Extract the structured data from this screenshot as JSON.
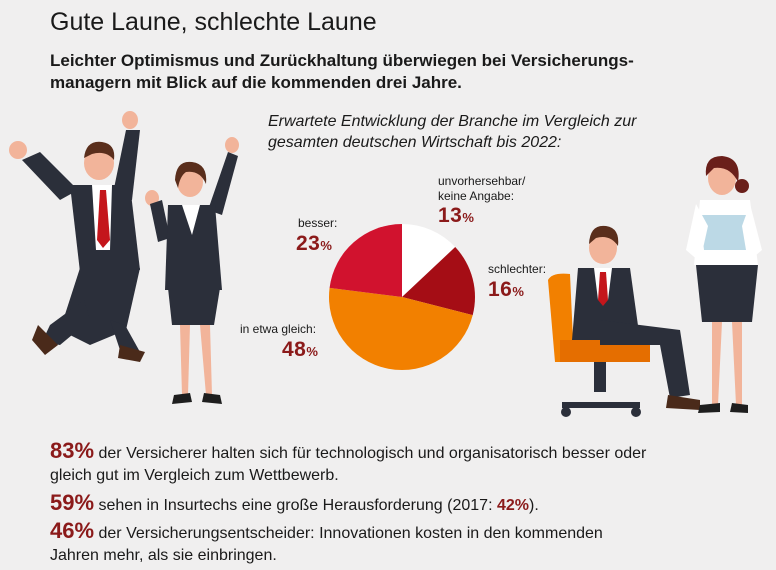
{
  "title": "Gute Laune, schlechte Laune",
  "subtitle": "Leichter Optimismus und Zurückhaltung überwiegen bei Versicherungs-managern mit Blick auf die kommenden drei Jahre.",
  "chart_data": {
    "type": "pie",
    "title": "Erwartete Entwicklung der Branche im Vergleich zur gesamten deutschen Wirtschaft bis 2022:",
    "slices": [
      {
        "label": "unvorhersehbar/ keine Angabe:",
        "value": 13,
        "display": "13",
        "color": "#ffffff"
      },
      {
        "label": "schlechter:",
        "value": 16,
        "display": "16",
        "color": "#a50d15"
      },
      {
        "label": "in etwa gleich:",
        "value": 48,
        "display": "48",
        "color": "#f28000"
      },
      {
        "label": "besser:",
        "value": 23,
        "display": "23",
        "color": "#d1122e"
      }
    ],
    "unit": "%"
  },
  "stats": [
    {
      "num": "83",
      "unit": "%",
      "text": "der Versicherer halten sich für technologisch und organisatorisch besser oder gleich gut im Vergleich zum Wettbewerb."
    },
    {
      "num": "59",
      "unit": "%",
      "text": "sehen in Insurtechs eine große Herausforderung (2017:",
      "highlight": "42%",
      "after": ")."
    },
    {
      "num": "46",
      "unit": "%",
      "text": "der Versicherungsentscheider: Innovationen kosten in den kommenden Jahren mehr, als sie einbringen."
    }
  ]
}
